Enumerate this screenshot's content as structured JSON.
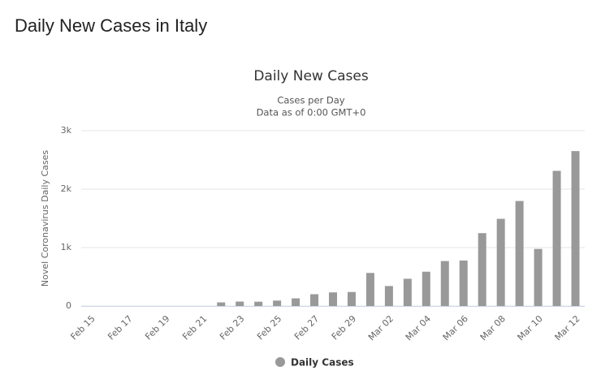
{
  "page_title": "Daily New Cases in Italy",
  "chart_data": {
    "type": "bar",
    "title": "Daily New Cases",
    "subtitle": [
      "Cases per Day",
      "Data as of 0:00 GMT+0"
    ],
    "y_label": "Novel Coronavirus Daily Cases",
    "categories": [
      "Feb 15",
      null,
      "Feb 17",
      null,
      "Feb 19",
      null,
      "Feb 21",
      null,
      "Feb 23",
      null,
      "Feb 25",
      null,
      "Feb 27",
      null,
      "Feb 29",
      null,
      "Mar 02",
      null,
      "Mar 04",
      null,
      "Mar 06",
      null,
      "Mar 08",
      null,
      "Mar 10",
      null,
      "Mar 12"
    ],
    "series": [
      {
        "name": "Daily Cases",
        "color": "#999999",
        "values": [
          0,
          0,
          0,
          0,
          0,
          0,
          0,
          62,
          76,
          74,
          93,
          131,
          202,
          233,
          240,
          566,
          342,
          466,
          587,
          769,
          778,
          1247,
          1492,
          1797,
          977,
          2313,
          2651
        ]
      }
    ],
    "ylim": [
      0,
      3000
    ],
    "yticks": [
      0,
      {
        "value": 1000,
        "label": "1k"
      },
      {
        "value": 2000,
        "label": "2k"
      },
      {
        "value": 3000,
        "label": "3k"
      }
    ],
    "grid": true,
    "legend": "bottom"
  }
}
